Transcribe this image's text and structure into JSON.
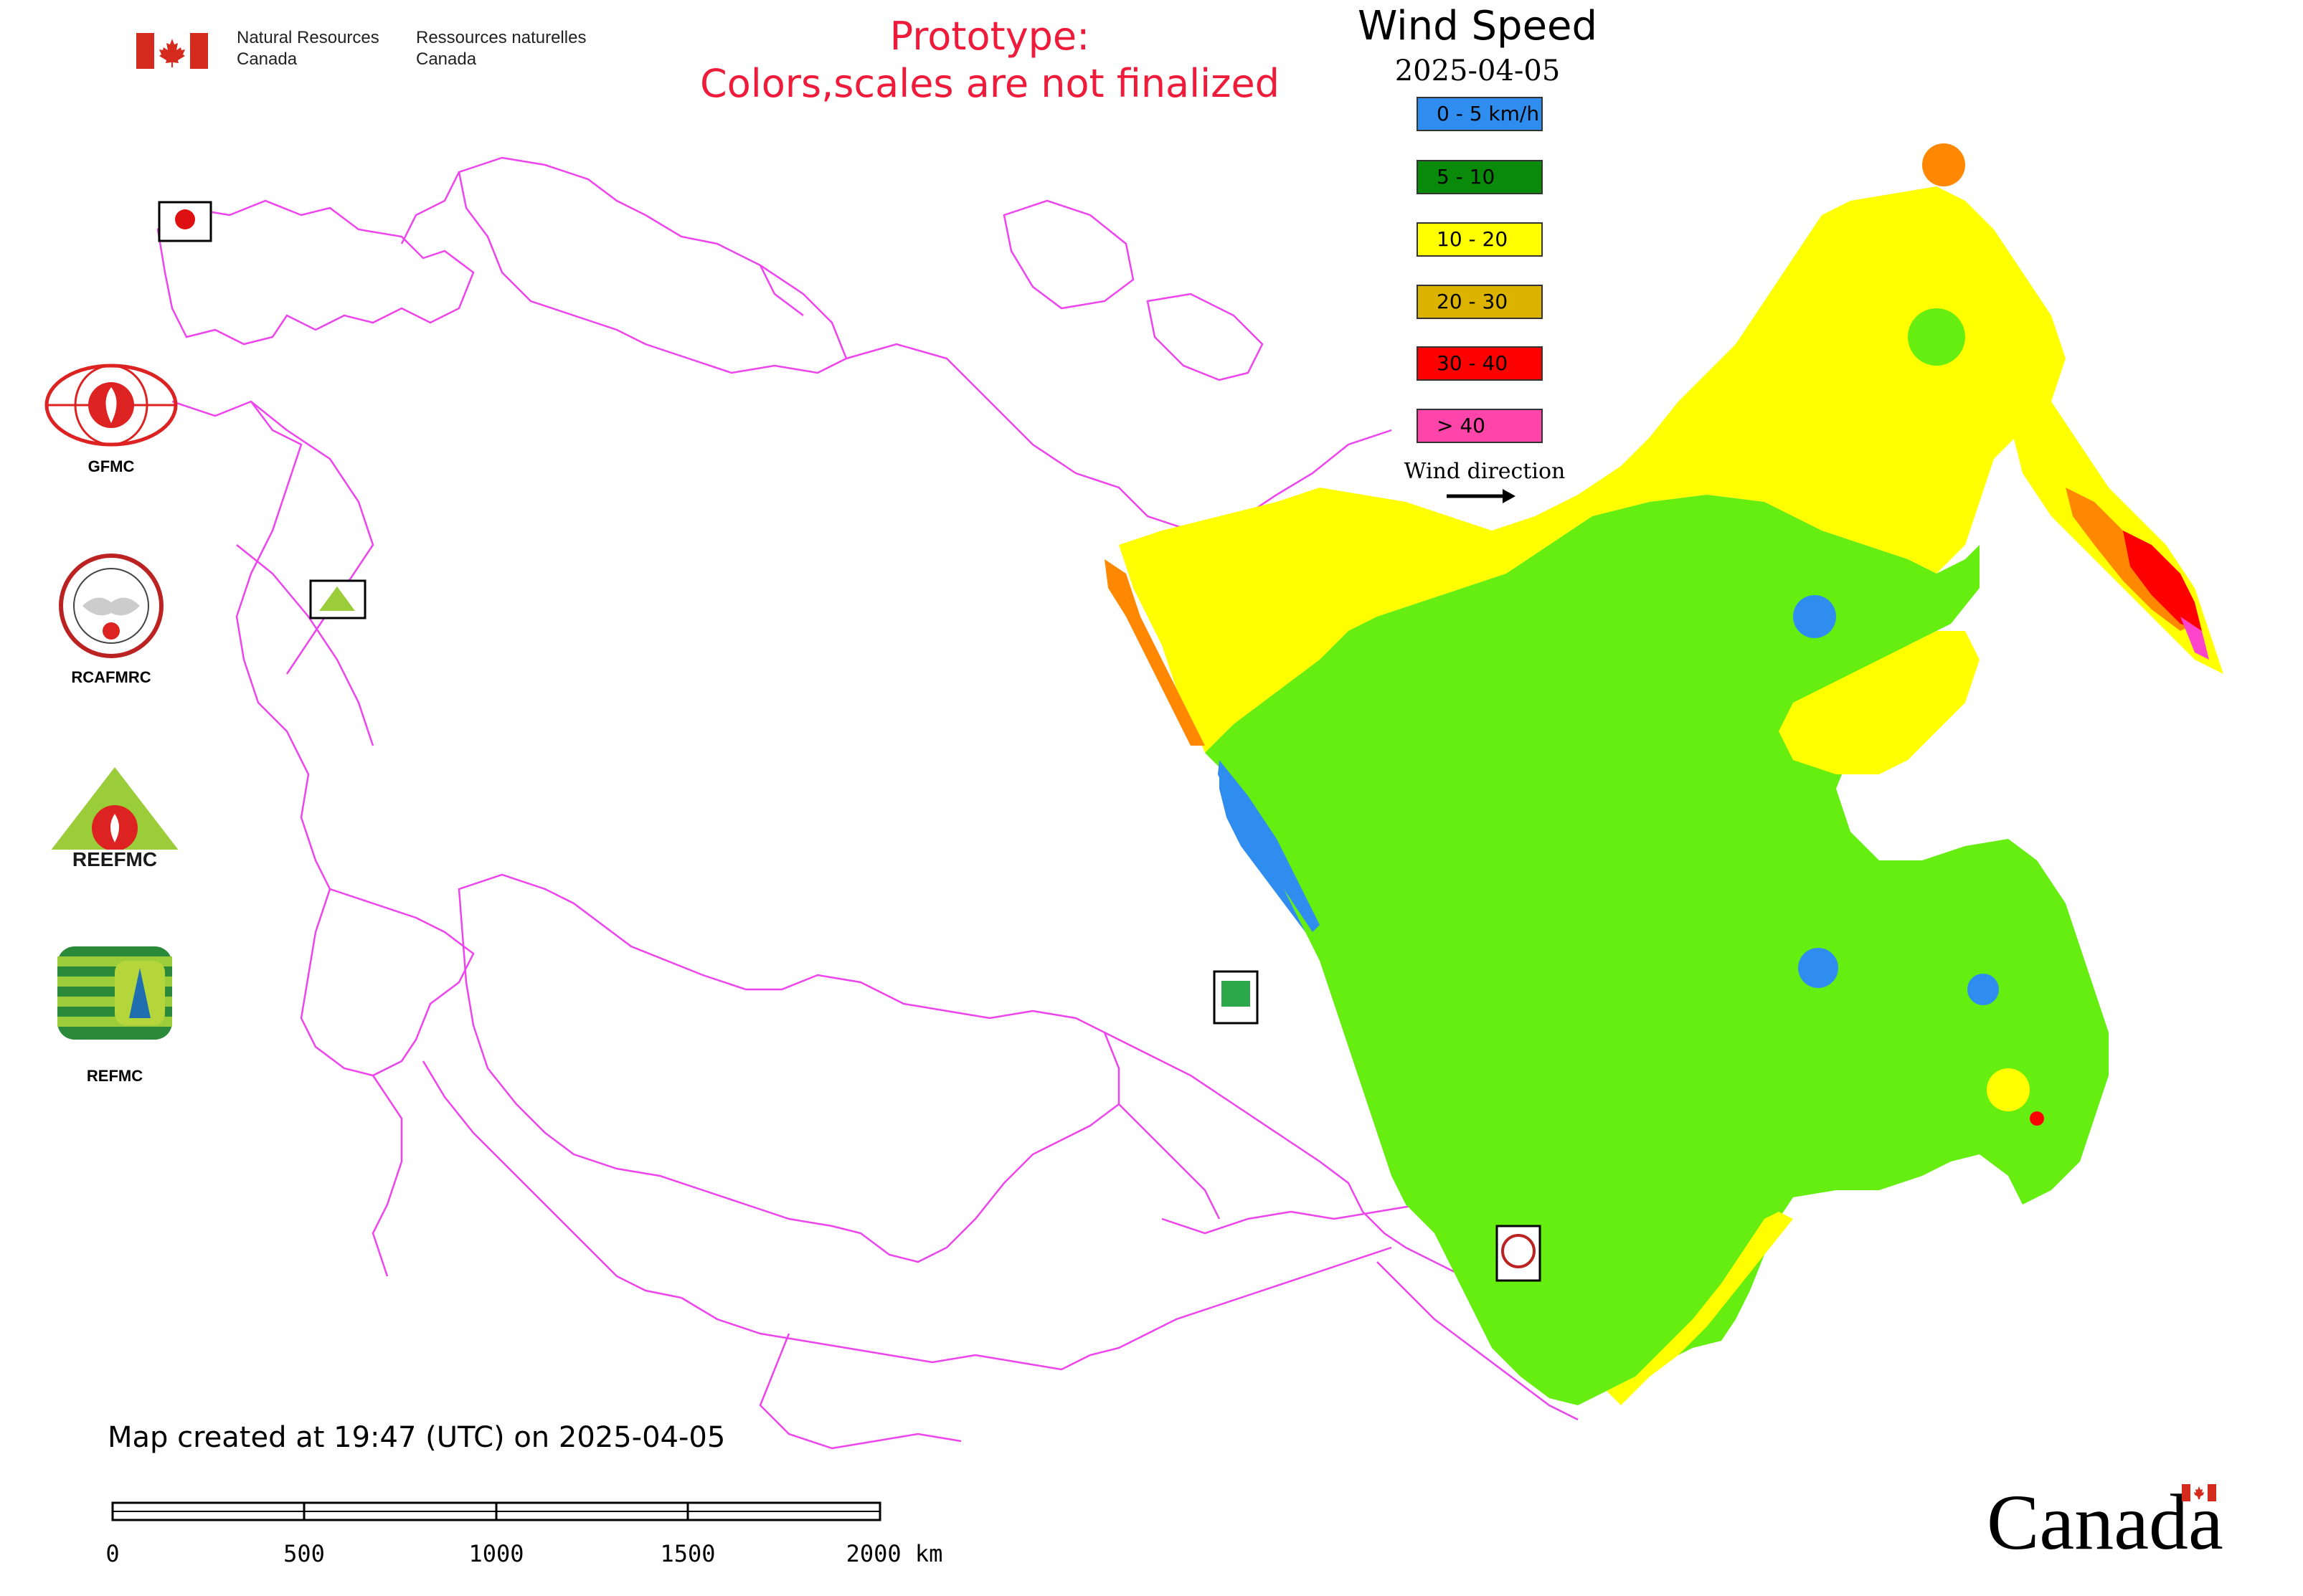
{
  "header": {
    "agency_en_line1": "Natural Resources",
    "agency_en_line2": "Canada",
    "agency_fr_line1": "Ressources naturelles",
    "agency_fr_line2": "Canada"
  },
  "notice": {
    "line1": "Prototype:",
    "line2": "Colors,scales are not finalized"
  },
  "map": {
    "title": "Wind Speed",
    "date": "2025-04-05",
    "created_note": "Map created at 19:47 (UTC) on 2025-04-05"
  },
  "legend": {
    "items": [
      {
        "label": "0 - 5 km/h",
        "color": "#2f8df0"
      },
      {
        "label": "5 - 10",
        "color": "#0a8a0a"
      },
      {
        "label": "10 - 20",
        "color": "#ffff00"
      },
      {
        "label": "20 - 30",
        "color": "#dcb400"
      },
      {
        "label": "30 - 40",
        "color": "#ff0000"
      },
      {
        "label": "> 40",
        "color": "#ff44aa"
      }
    ],
    "wind_direction_label": "Wind direction"
  },
  "colors": {
    "boundary": "#ee44ee",
    "class_low_blue": "#2f8df0",
    "class_green": "#66ee11",
    "class_yellow": "#ffff00",
    "class_orange": "#ff8800",
    "class_red": "#ff0000",
    "class_pink": "#ff44cc"
  },
  "organizations": [
    {
      "name": "GFMC"
    },
    {
      "name": "RCAFMRC"
    },
    {
      "name": "REEFMC"
    },
    {
      "name": "REFMC"
    }
  ],
  "scale_bar": {
    "ticks": [
      "0",
      "500",
      "1000",
      "1500",
      "2000 km"
    ]
  },
  "wordmark": "Canada"
}
